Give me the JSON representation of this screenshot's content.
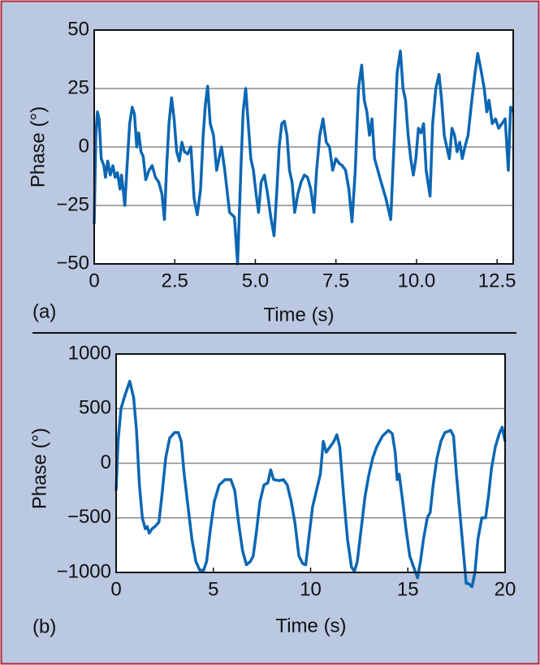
{
  "chart_data": [
    {
      "type": "line",
      "annotation": "(a)",
      "xlabel": "Time (s)",
      "ylabel": "Phase (°)",
      "color": "#0c67b3",
      "grid": true,
      "xlim": [
        0,
        13
      ],
      "ylim": [
        -50,
        50
      ],
      "xticks": [
        0,
        2.5,
        {
          "value": 5,
          "label": "5.0"
        },
        7.5,
        {
          "value": 10,
          "label": "10.0"
        },
        12.5
      ],
      "yticks": [
        50,
        25,
        0,
        {
          "value": -25,
          "label": "−25"
        },
        {
          "value": -50,
          "label": "−50"
        }
      ],
      "x": [
        0,
        0.05,
        0.1,
        0.15,
        0.22,
        0.3,
        0.35,
        0.42,
        0.5,
        0.58,
        0.65,
        0.72,
        0.8,
        0.85,
        0.95,
        1.02,
        1.1,
        1.18,
        1.25,
        1.32,
        1.38,
        1.45,
        1.52,
        1.6,
        1.7,
        1.8,
        1.9,
        2.0,
        2.1,
        2.18,
        2.25,
        2.32,
        2.4,
        2.48,
        2.56,
        2.64,
        2.72,
        2.8,
        2.9,
        3.0,
        3.1,
        3.2,
        3.3,
        3.38,
        3.45,
        3.52,
        3.6,
        3.7,
        3.8,
        3.87,
        3.95,
        4.05,
        4.2,
        4.35,
        4.45,
        4.55,
        4.62,
        4.7,
        4.78,
        4.86,
        4.94,
        5.02,
        5.1,
        5.18,
        5.28,
        5.38,
        5.48,
        5.58,
        5.66,
        5.74,
        5.82,
        5.9,
        5.98,
        6.06,
        6.14,
        6.22,
        6.32,
        6.42,
        6.52,
        6.62,
        6.72,
        6.82,
        6.9,
        7.0,
        7.1,
        7.2,
        7.3,
        7.4,
        7.5,
        7.6,
        7.7,
        7.8,
        7.9,
        8.0,
        8.1,
        8.2,
        8.3,
        8.38,
        8.46,
        8.54,
        8.62,
        8.7,
        8.8,
        8.9,
        9.05,
        9.2,
        9.3,
        9.4,
        9.5,
        9.58,
        9.66,
        9.74,
        9.82,
        9.9,
        9.98,
        10.06,
        10.14,
        10.22,
        10.3,
        10.42,
        10.5,
        10.6,
        10.7,
        10.78,
        10.86,
        10.94,
        11.02,
        11.1,
        11.18,
        11.26,
        11.34,
        11.42,
        11.5,
        11.6,
        11.7,
        11.8,
        11.9,
        12.0,
        12.1,
        12.18,
        12.25,
        12.35,
        12.45,
        12.55,
        12.65,
        12.75,
        12.85,
        12.92,
        13.0
      ],
      "values": [
        -33,
        5,
        15,
        12,
        -5,
        -8,
        -13,
        -6,
        -12,
        -8,
        -13,
        -11,
        -18,
        -12,
        -25,
        -8,
        10,
        17,
        14,
        0,
        6,
        -2,
        -4,
        -14,
        -10,
        -8,
        -13,
        -15,
        -20,
        -31,
        -8,
        10,
        21,
        12,
        -2,
        -6,
        2,
        -2,
        -3,
        0,
        -22,
        -29,
        -18,
        5,
        18,
        26,
        10,
        5,
        -10,
        -5,
        0,
        -10,
        -28,
        -30,
        -50,
        -10,
        15,
        25,
        10,
        -5,
        -10,
        -20,
        -28,
        -15,
        -12,
        -20,
        -30,
        -38,
        -20,
        0,
        10,
        11,
        5,
        -10,
        -15,
        -28,
        -20,
        -15,
        -12,
        -13,
        -18,
        -28,
        -10,
        5,
        12,
        2,
        0,
        -10,
        -5,
        -7,
        -8,
        -10,
        -18,
        -32,
        -10,
        25,
        35,
        20,
        15,
        5,
        12,
        -5,
        -10,
        -15,
        -22,
        -31,
        0,
        32,
        41,
        25,
        20,
        5,
        -5,
        -12,
        -5,
        8,
        6,
        10,
        -10,
        -21,
        10,
        25,
        31,
        20,
        5,
        0,
        -5,
        8,
        5,
        -2,
        2,
        -5,
        0,
        5,
        18,
        30,
        40,
        33,
        25,
        15,
        20,
        10,
        12,
        8,
        10,
        12,
        -10,
        17,
        15
      ]
    },
    {
      "type": "line",
      "annotation": "(b)",
      "xlabel": "Time (s)",
      "ylabel": "Phase (°)",
      "color": "#0c67b3",
      "grid": true,
      "xlim": [
        0,
        20
      ],
      "ylim": [
        -1000,
        1000
      ],
      "xticks": [
        0,
        5,
        10,
        15,
        20
      ],
      "yticks": [
        1000,
        500,
        0,
        {
          "value": -500,
          "label": "−500"
        },
        {
          "value": -1000,
          "label": "−1000"
        }
      ],
      "x": [
        0,
        0.1,
        0.25,
        0.45,
        0.7,
        0.9,
        1.05,
        1.2,
        1.35,
        1.5,
        1.6,
        1.7,
        1.85,
        2.0,
        2.2,
        2.35,
        2.55,
        2.75,
        3.0,
        3.2,
        3.35,
        3.5,
        3.7,
        3.9,
        4.1,
        4.3,
        4.5,
        4.65,
        4.85,
        5.05,
        5.3,
        5.6,
        5.9,
        6.1,
        6.3,
        6.5,
        6.7,
        6.9,
        7.05,
        7.2,
        7.4,
        7.6,
        7.8,
        7.95,
        8.1,
        8.4,
        8.6,
        8.8,
        9.0,
        9.2,
        9.4,
        9.6,
        9.75,
        9.9,
        10.1,
        10.3,
        10.5,
        10.65,
        10.8,
        11.0,
        11.2,
        11.35,
        11.5,
        11.7,
        11.9,
        12.1,
        12.25,
        12.4,
        12.6,
        12.8,
        13.0,
        13.2,
        13.4,
        13.7,
        14.0,
        14.2,
        14.35,
        14.45,
        14.55,
        14.7,
        14.9,
        15.1,
        15.3,
        15.5,
        15.65,
        15.8,
        16.0,
        16.15,
        16.3,
        16.5,
        16.7,
        16.9,
        17.2,
        17.35,
        17.5,
        17.7,
        17.9,
        18.0,
        18.1,
        18.3,
        18.45,
        18.6,
        18.8,
        19.0,
        19.15,
        19.3,
        19.5,
        19.7,
        19.85,
        20.0
      ],
      "values": [
        -250,
        200,
        500,
        620,
        750,
        600,
        300,
        -200,
        -500,
        -600,
        -580,
        -640,
        -600,
        -580,
        -540,
        -300,
        50,
        230,
        280,
        280,
        200,
        -100,
        -400,
        -700,
        -900,
        -980,
        -980,
        -900,
        -600,
        -350,
        -200,
        -150,
        -150,
        -250,
        -550,
        -800,
        -930,
        -900,
        -850,
        -650,
        -350,
        -200,
        -180,
        -60,
        -150,
        -160,
        -150,
        -200,
        -350,
        -550,
        -850,
        -920,
        -930,
        -700,
        -400,
        -250,
        -100,
        200,
        100,
        150,
        200,
        260,
        150,
        -300,
        -700,
        -950,
        -990,
        -900,
        -600,
        -300,
        -100,
        50,
        150,
        250,
        300,
        270,
        100,
        -150,
        -100,
        -300,
        -600,
        -850,
        -950,
        -1050,
        -900,
        -700,
        -500,
        -450,
        -200,
        50,
        200,
        280,
        300,
        250,
        -100,
        -500,
        -900,
        -1100,
        -1100,
        -1130,
        -1000,
        -700,
        -500,
        -500,
        -300,
        -50,
        150,
        270,
        330,
        200
      ]
    }
  ]
}
